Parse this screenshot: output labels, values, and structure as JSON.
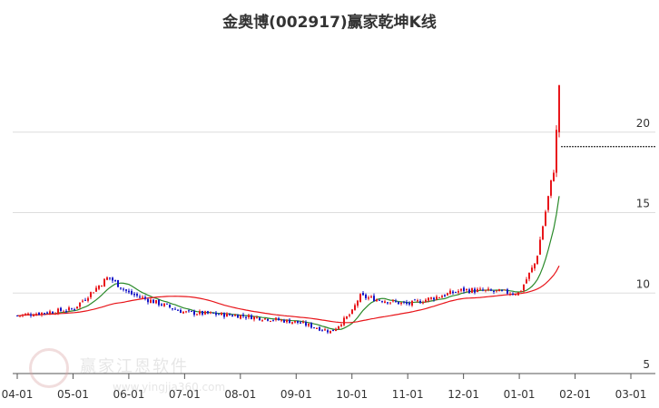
{
  "chart_data": {
    "type": "candlestick",
    "title": "金奥博(002917)赢家乾坤K线",
    "x_tick_labels": [
      "04-01",
      "05-01",
      "06-01",
      "07-01",
      "08-01",
      "09-01",
      "10-01",
      "11-01",
      "12-01",
      "01-01",
      "02-01",
      "03-01"
    ],
    "y_tick_labels": [
      "5",
      "10",
      "15",
      "20"
    ],
    "ylim": [
      5,
      25
    ],
    "grid": "horizontal",
    "colors": {
      "up": "#e8161b",
      "down": "#1414c8",
      "ma_short": "#2a8a2a",
      "ma_long": "#e8161b",
      "grid": "#dddddd"
    },
    "monthly_close": {
      "04-01": 8.6,
      "05-01": 9.0,
      "05-20": 11.0,
      "06-01": 10.0,
      "07-01": 8.8,
      "08-01": 8.6,
      "09-01": 8.2,
      "09-20": 7.6,
      "10-01": 8.8,
      "10-05": 9.8,
      "11-01": 9.3,
      "12-01": 10.2,
      "01-01": 10.0,
      "01-10": 12.0,
      "01-20": 18.0,
      "last": 23.3
    },
    "last_price_line": 19.1
  },
  "watermark": {
    "text": "赢家江恩软件",
    "url": "www.yingjia360.com"
  }
}
